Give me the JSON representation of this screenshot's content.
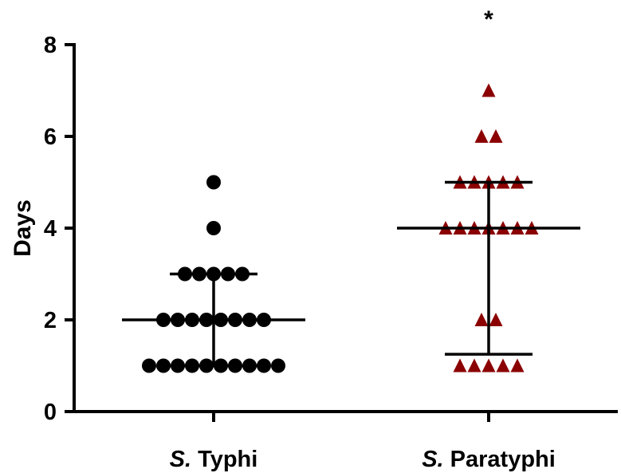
{
  "chart_data": {
    "type": "scatter",
    "title": "",
    "xlabel": "",
    "ylabel": "Days",
    "ylim": [
      0,
      8
    ],
    "yticks": [
      0,
      2,
      4,
      6,
      8
    ],
    "grid": false,
    "categories": [
      {
        "italic": "S.",
        "rest": " Typhi"
      },
      {
        "italic": "S.",
        "rest": " Paratyphi"
      }
    ],
    "annotations": [
      {
        "category": 1,
        "text": "*"
      }
    ],
    "colors": {
      "typhi": "#000000",
      "paratyphi": "#8b0000",
      "axis": "#000000"
    },
    "series": [
      {
        "marker": "circle",
        "values": [
          5,
          4,
          3,
          3,
          3,
          3,
          3,
          2,
          2,
          2,
          2,
          2,
          2,
          2,
          2,
          1,
          1,
          1,
          1,
          1,
          1,
          1,
          1,
          1,
          1
        ],
        "median": 2,
        "iqr": [
          1,
          3
        ]
      },
      {
        "marker": "triangle",
        "values": [
          7,
          6,
          6,
          5,
          5,
          5,
          5,
          5,
          4,
          4,
          4,
          4,
          4,
          4,
          4,
          2,
          2,
          1,
          1,
          1,
          1,
          1
        ],
        "median": 4,
        "iqr": [
          1.25,
          5
        ]
      }
    ]
  }
}
